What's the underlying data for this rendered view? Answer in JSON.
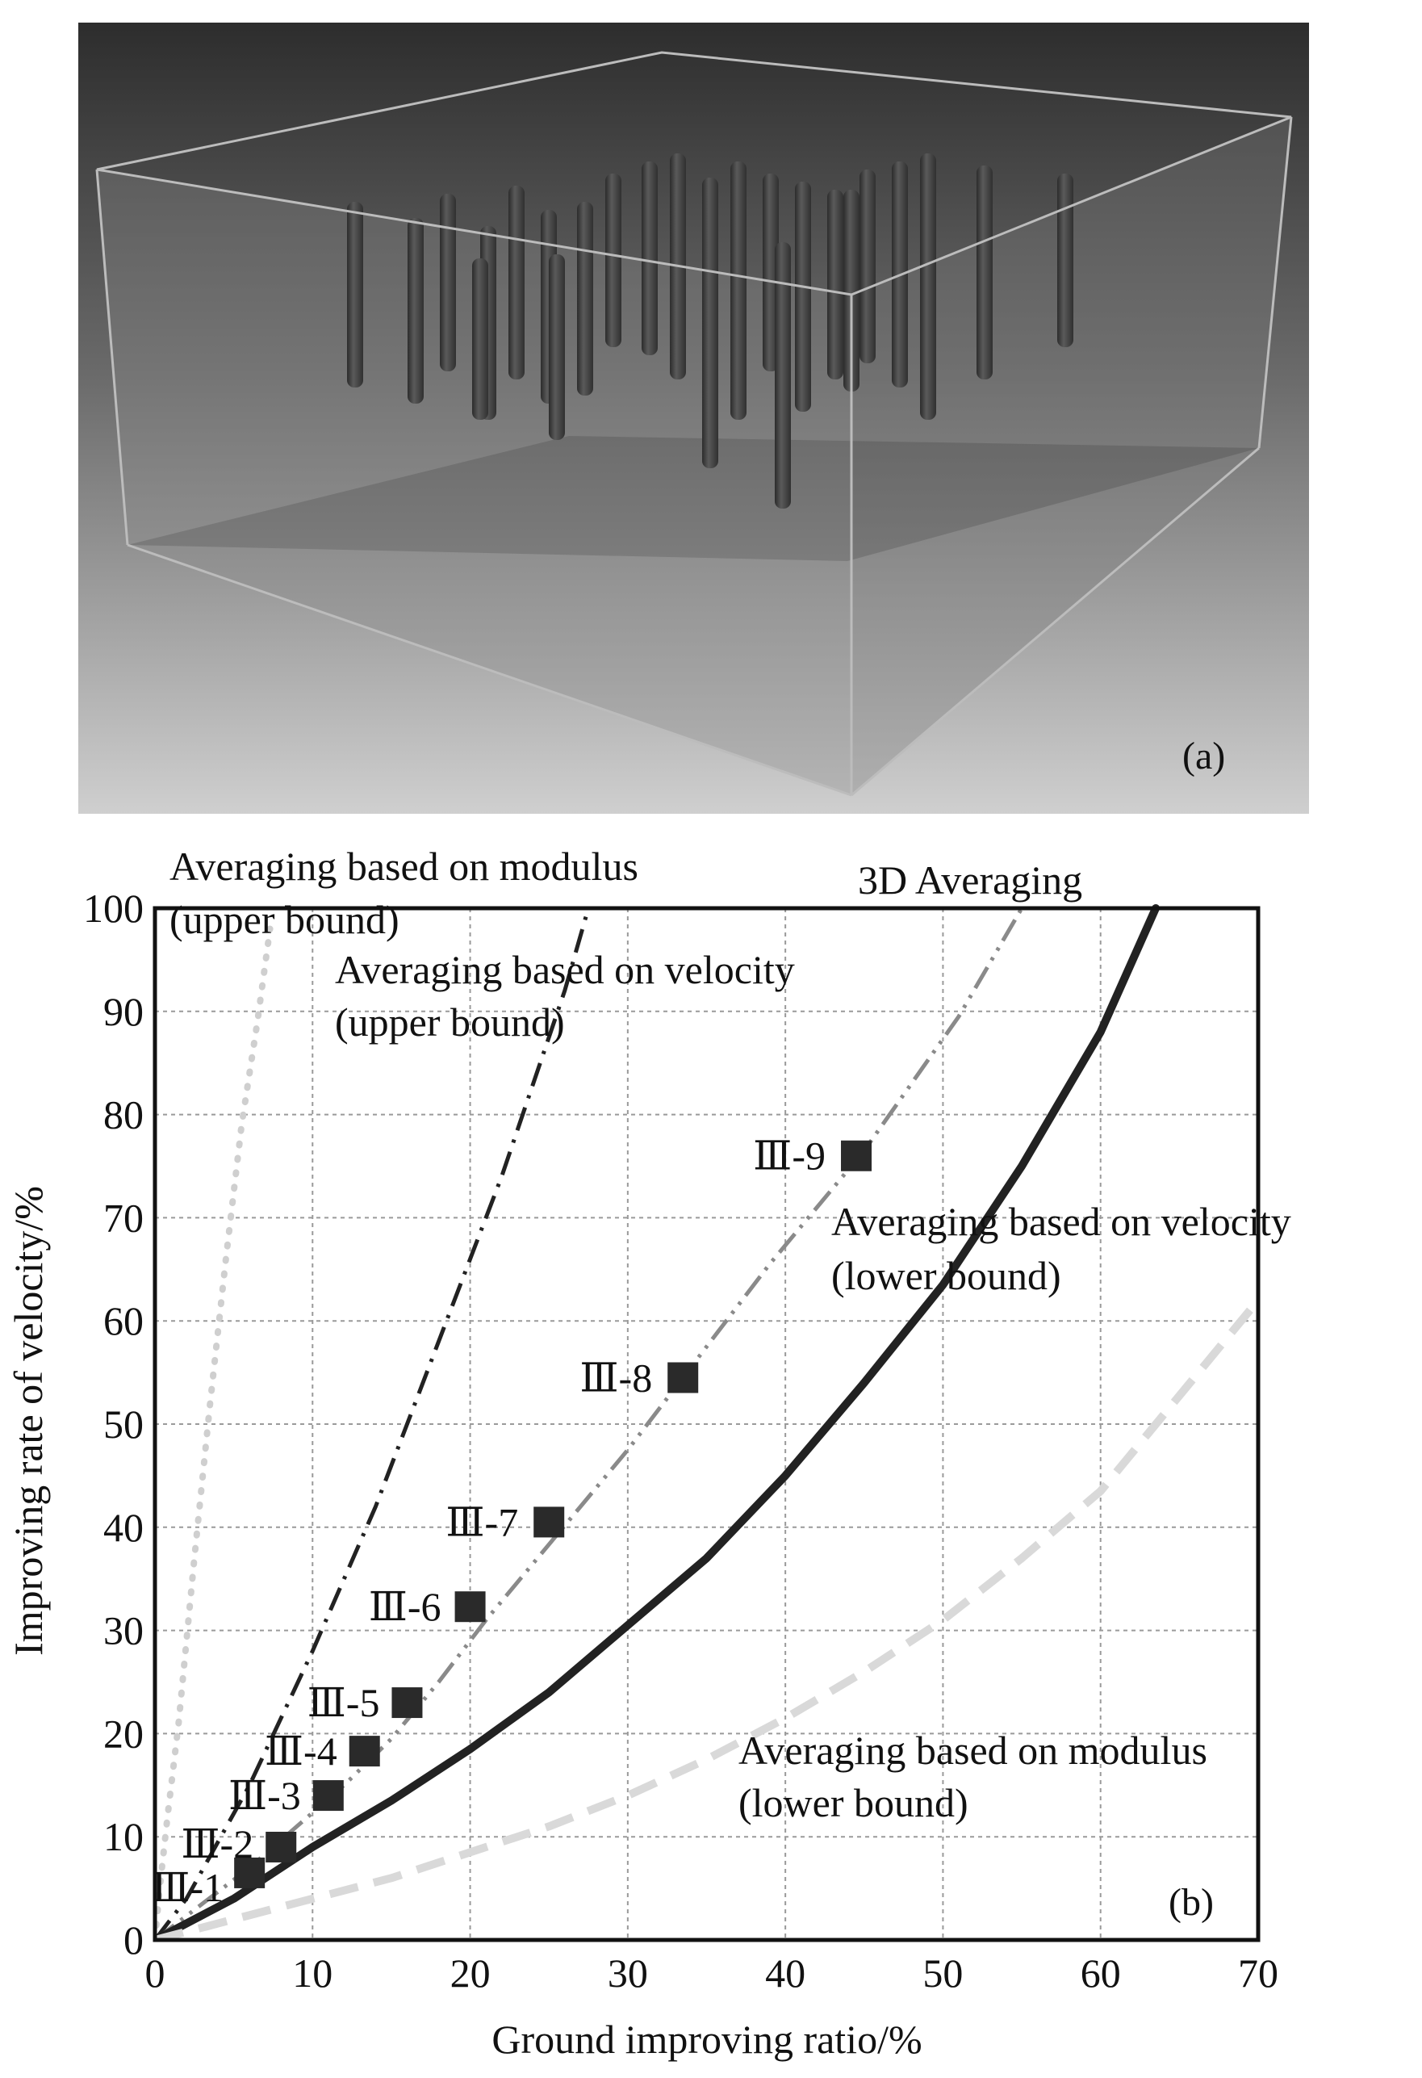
{
  "panel_a": {
    "label": "(a)"
  },
  "chart_data": {
    "type": "line",
    "panel_label": "(b)",
    "title": "",
    "xlabel": "Ground improving ratio/%",
    "ylabel": "Improving rate of velocity/%",
    "xlim": [
      0,
      70
    ],
    "ylim": [
      0,
      100
    ],
    "x_ticks": [
      0,
      10,
      20,
      30,
      40,
      50,
      60,
      70
    ],
    "y_ticks": [
      0,
      10,
      20,
      30,
      40,
      50,
      60,
      70,
      80,
      90,
      100
    ],
    "grid": true,
    "series": [
      {
        "name": "Averaging based on modulus (upper bound)",
        "style": "dotted",
        "color": "#cfcfcf",
        "x": [
          0,
          0.3,
          0.8,
          1.5,
          2.5,
          3.5,
          4.5,
          5.5,
          6.5,
          7.3
        ],
        "y": [
          0,
          5,
          12,
          21,
          37,
          52,
          66,
          79,
          89,
          98
        ]
      },
      {
        "name": "Averaging based on velocity (upper bound)",
        "style": "dash-dot",
        "color": "#222222",
        "x": [
          0,
          2,
          4,
          6,
          8,
          10,
          12,
          14,
          16,
          18,
          20,
          22,
          24,
          26,
          27.5
        ],
        "y": [
          0,
          4,
          9.5,
          15,
          21.5,
          28,
          35,
          42,
          50,
          58,
          66,
          74,
          83,
          92,
          100
        ]
      },
      {
        "name": "3D Averaging",
        "style": "dash-dot-dot",
        "color": "#8a8a8a",
        "x": [
          0,
          3,
          6,
          9,
          12,
          15,
          18,
          21,
          24,
          27,
          30,
          33,
          36,
          39,
          42,
          45,
          48,
          51,
          55
        ],
        "y": [
          0,
          3.5,
          7,
          11,
          15,
          19.5,
          25,
          31,
          36.5,
          42,
          47.5,
          53.5,
          59.5,
          65.5,
          71,
          76.5,
          83,
          89.5,
          100
        ]
      },
      {
        "name": "Averaging based on velocity (lower bound)",
        "style": "solid",
        "color": "#222222",
        "x": [
          0,
          5,
          10,
          15,
          20,
          25,
          30,
          35,
          40,
          45,
          50,
          55,
          60,
          63.5
        ],
        "y": [
          0,
          4,
          9,
          13.5,
          18.5,
          24,
          30.5,
          37,
          45,
          54,
          63.5,
          75,
          88,
          100
        ]
      },
      {
        "name": "Averaging based on modulus (lower bound)",
        "style": "dashed",
        "color": "#d9d9d9",
        "x": [
          0,
          5,
          10,
          15,
          20,
          25,
          30,
          35,
          40,
          45,
          50,
          55,
          60,
          70
        ],
        "y": [
          0,
          2,
          4,
          6,
          8.5,
          11,
          14,
          17.5,
          21.5,
          26,
          31,
          37,
          43.5,
          62
        ]
      },
      {
        "name": "Test points",
        "style": "markers",
        "color": "#2a2a2a",
        "labels": [
          "Ⅲ-1",
          "Ⅲ-2",
          "Ⅲ-3",
          "Ⅲ-4",
          "Ⅲ-5",
          "Ⅲ-6",
          "Ⅲ-7",
          "Ⅲ-8",
          "Ⅲ-9"
        ],
        "x": [
          6,
          8,
          11,
          13.3,
          16,
          20,
          25,
          33.5,
          44.5
        ],
        "y": [
          6.5,
          9,
          14,
          18.3,
          23,
          32.3,
          40.5,
          54.5,
          76
        ]
      }
    ],
    "annotations": [
      {
        "text": "Averaging based on modulus",
        "series": 0
      },
      {
        "text": "(upper bound)",
        "series": 0
      },
      {
        "text": "Averaging based on velocity",
        "series": 1
      },
      {
        "text": "(upper bound)",
        "series": 1
      },
      {
        "text": "3D Averaging",
        "series": 2
      },
      {
        "text": "Averaging based on velocity",
        "series": 3
      },
      {
        "text": "(lower bound)",
        "series": 3
      },
      {
        "text": "Averaging based on modulus",
        "series": 4
      },
      {
        "text": "(lower bound)",
        "series": 4
      }
    ]
  }
}
